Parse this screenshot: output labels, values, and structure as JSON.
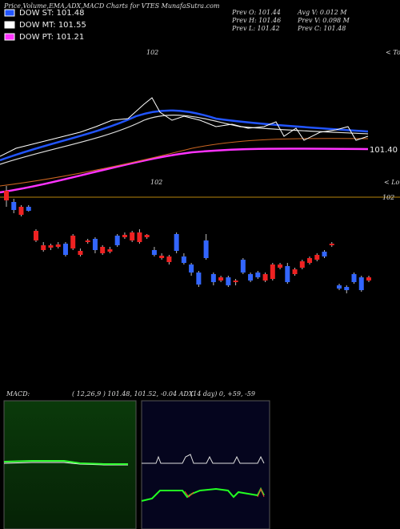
{
  "chart_data": {
    "type": "candlestick",
    "title": "Price,Volume,EMA,ADX,MACD Charts for VTES MunafaSutra.com",
    "legend": [
      {
        "name": "DOW ST: 101.48",
        "color": "#2255ff"
      },
      {
        "name": "DOW MT: 101.55",
        "color": "#ffffff"
      },
      {
        "name": "DOW PT: 101.21",
        "color": "#ff33ff"
      }
    ],
    "info": [
      "Prev  O: 101.44",
      "Avg V: 0.012  M",
      "Prev  H: 101.46",
      "Prev  V: 0.098  M",
      "Prev  L: 101.42",
      "Prev  C: 101.48"
    ],
    "annotations": {
      "top_label": "102",
      "tops": "< Tops",
      "line_label": "101.40",
      "low_label": "102",
      "lows": "< Lows",
      "right_label": "102"
    },
    "ylim": [
      100.8,
      103
    ],
    "up_color": "#3366ff",
    "down_color": "#ee2222",
    "open": [
      101.81,
      101.69,
      101.71,
      101.685,
      101.56,
      101.47,
      101.47,
      101.475,
      101.41,
      101.53,
      101.435,
      101.5,
      101.44,
      101.46,
      101.445,
      101.47,
      101.535,
      101.55,
      101.55,
      101.535,
      101.41,
      101.405,
      101.4,
      101.435,
      101.36,
      101.3,
      101.225,
      101.39,
      101.24,
      101.27,
      101.22,
      101.25,
      101.3,
      101.25,
      101.27,
      101.29,
      101.35,
      101.35,
      101.24,
      101.32,
      101.37,
      101.39,
      101.41,
      101.4,
      101.48,
      101.2,
      101.19,
      101.24,
      101.19,
      101.27
    ],
    "high": [
      101.84,
      101.76,
      101.72,
      101.72,
      101.57,
      101.49,
      101.48,
      101.49,
      101.49,
      101.54,
      101.45,
      101.51,
      101.52,
      101.47,
      101.46,
      101.54,
      101.55,
      101.56,
      101.57,
      101.54,
      101.46,
      101.42,
      101.41,
      101.55,
      101.42,
      101.36,
      101.31,
      101.54,
      101.3,
      101.28,
      101.28,
      101.26,
      101.39,
      101.3,
      101.31,
      101.3,
      101.36,
      101.36,
      101.36,
      101.33,
      101.38,
      101.4,
      101.42,
      101.44,
      101.49,
      101.23,
      101.22,
      101.3,
      101.28,
      101.28
    ],
    "low": [
      101.71,
      101.67,
      101.65,
      101.68,
      101.49,
      101.43,
      101.44,
      101.45,
      101.4,
      101.44,
      101.4,
      101.48,
      101.42,
      101.41,
      101.42,
      101.46,
      101.51,
      101.49,
      101.48,
      101.51,
      101.4,
      101.38,
      101.35,
      101.42,
      101.35,
      101.28,
      101.21,
      101.38,
      101.22,
      101.24,
      101.21,
      101.22,
      101.29,
      101.24,
      101.26,
      101.24,
      101.25,
      101.32,
      101.23,
      101.28,
      101.32,
      101.35,
      101.37,
      101.39,
      101.46,
      101.19,
      101.17,
      101.23,
      101.18,
      101.24
    ],
    "close": [
      101.75,
      101.74,
      101.66,
      101.71,
      101.5,
      101.44,
      101.455,
      101.46,
      101.48,
      101.45,
      101.41,
      101.49,
      101.51,
      101.42,
      101.43,
      101.53,
      101.52,
      101.5,
      101.49,
      101.52,
      101.44,
      101.39,
      101.365,
      101.54,
      101.4,
      101.35,
      101.3,
      101.5,
      101.29,
      101.25,
      101.27,
      101.24,
      101.38,
      101.29,
      101.3,
      101.25,
      101.26,
      101.33,
      101.34,
      101.29,
      101.33,
      101.36,
      101.38,
      101.43,
      101.47,
      101.22,
      101.21,
      101.29,
      101.27,
      101.25
    ],
    "macd_label": "MACD:",
    "macd_text": "( 12,26,9 ) 101.48, 101.52, -0.04 ADX",
    "adx_text": "(14  day) 0, +59, -59"
  }
}
